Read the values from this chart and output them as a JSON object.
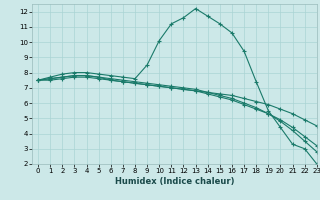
{
  "title": "",
  "xlabel": "Humidex (Indice chaleur)",
  "bg_color": "#cce8e8",
  "grid_color": "#aad4d4",
  "line_color": "#1a7a6a",
  "xlim": [
    -0.5,
    23
  ],
  "ylim": [
    2,
    12.5
  ],
  "xticks": [
    0,
    1,
    2,
    3,
    4,
    5,
    6,
    7,
    8,
    9,
    10,
    11,
    12,
    13,
    14,
    15,
    16,
    17,
    18,
    19,
    20,
    21,
    22,
    23
  ],
  "yticks": [
    2,
    3,
    4,
    5,
    6,
    7,
    8,
    9,
    10,
    11,
    12
  ],
  "lines": [
    {
      "x": [
        0,
        1,
        2,
        3,
        4,
        5,
        6,
        7,
        8,
        9,
        10,
        11,
        12,
        13,
        14,
        15,
        16,
        17,
        18,
        19,
        20,
        21,
        22,
        23
      ],
      "y": [
        7.5,
        7.7,
        7.9,
        8.0,
        8.0,
        7.9,
        7.8,
        7.7,
        7.6,
        8.5,
        10.1,
        11.2,
        11.6,
        12.2,
        11.7,
        11.2,
        10.6,
        9.4,
        7.4,
        5.5,
        4.4,
        3.3,
        3.0,
        2.0
      ]
    },
    {
      "x": [
        0,
        1,
        2,
        3,
        4,
        5,
        6,
        7,
        8,
        9,
        10,
        11,
        12,
        13,
        14,
        15,
        16,
        17,
        18,
        19,
        20,
        21,
        22,
        23
      ],
      "y": [
        7.5,
        7.6,
        7.7,
        7.8,
        7.8,
        7.7,
        7.6,
        7.5,
        7.4,
        7.3,
        7.2,
        7.1,
        7.0,
        6.9,
        6.7,
        6.5,
        6.3,
        6.0,
        5.7,
        5.3,
        4.8,
        4.2,
        3.5,
        2.8
      ]
    },
    {
      "x": [
        0,
        1,
        2,
        3,
        4,
        5,
        6,
        7,
        8,
        9,
        10,
        11,
        12,
        13,
        14,
        15,
        16,
        17,
        18,
        19,
        20,
        21,
        22,
        23
      ],
      "y": [
        7.5,
        7.6,
        7.7,
        7.8,
        7.8,
        7.7,
        7.5,
        7.4,
        7.3,
        7.2,
        7.1,
        7.0,
        6.9,
        6.8,
        6.6,
        6.4,
        6.2,
        5.9,
        5.6,
        5.3,
        4.9,
        4.4,
        3.8,
        3.2
      ]
    },
    {
      "x": [
        0,
        1,
        2,
        3,
        4,
        5,
        6,
        7,
        8,
        9,
        10,
        11,
        12,
        13,
        14,
        15,
        16,
        17,
        18,
        19,
        20,
        21,
        22,
        23
      ],
      "y": [
        7.5,
        7.5,
        7.6,
        7.7,
        7.7,
        7.6,
        7.5,
        7.4,
        7.3,
        7.2,
        7.1,
        7.0,
        6.9,
        6.8,
        6.7,
        6.6,
        6.5,
        6.3,
        6.1,
        5.9,
        5.6,
        5.3,
        4.9,
        4.5
      ]
    }
  ]
}
